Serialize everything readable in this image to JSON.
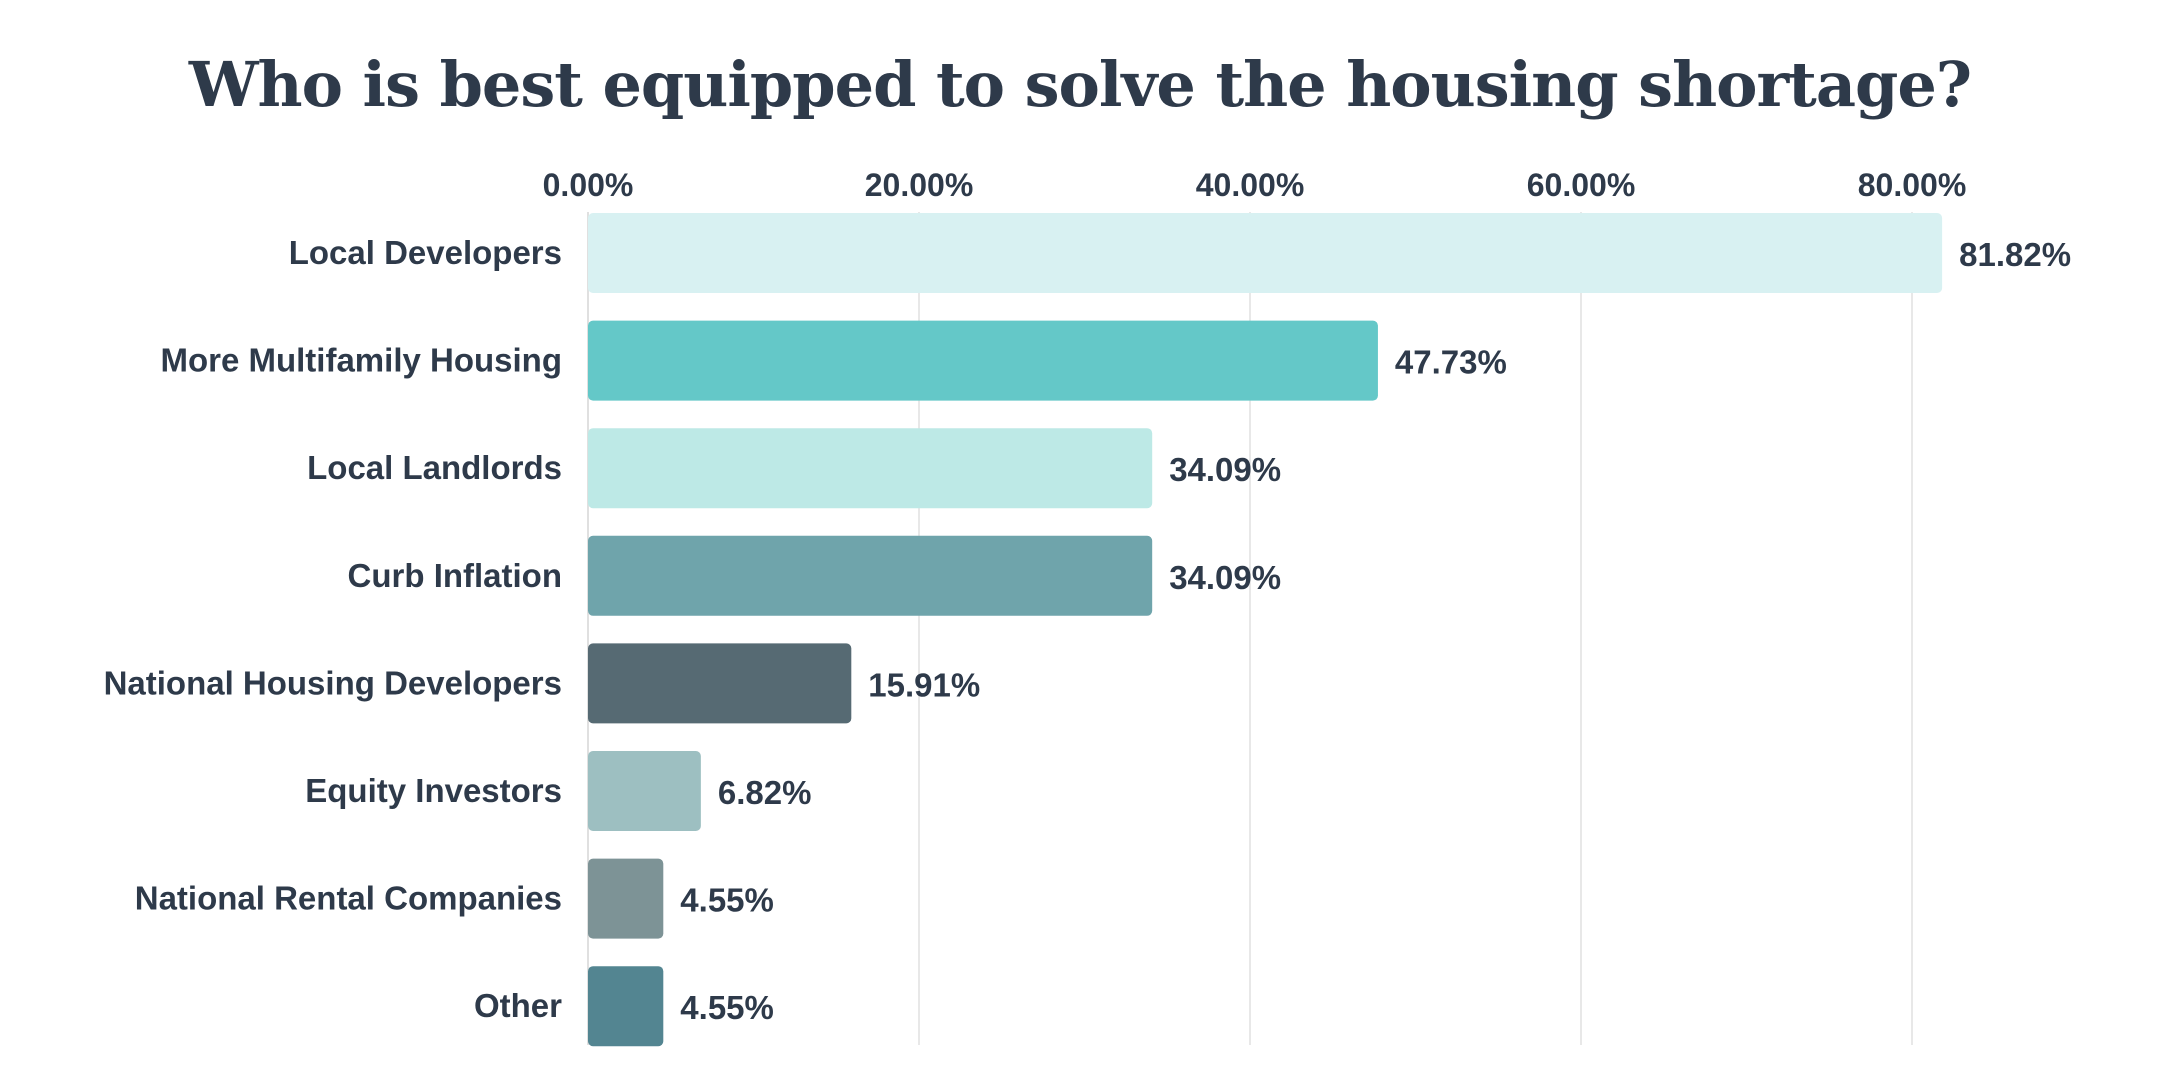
{
  "chart_data": {
    "type": "bar",
    "orientation": "horizontal",
    "title": "Who is best equipped to solve the housing shortage?",
    "xlabel": "",
    "ylabel": "",
    "xlim": [
      0,
      88
    ],
    "x_ticks": [
      0,
      20,
      40,
      60,
      80
    ],
    "x_tick_labels": [
      "0.00%",
      "20.00%",
      "40.00%",
      "60.00%",
      "80.00%"
    ],
    "x_axis_position": "top",
    "grid": true,
    "legend": "none",
    "categories": [
      "Local Developers",
      "More Multifamily Housing",
      "Local Landlords",
      "Curb Inflation",
      "National Housing Developers",
      "Equity Investors",
      "National Rental Companies",
      "Other"
    ],
    "values": [
      81.82,
      47.73,
      34.09,
      34.09,
      15.91,
      6.82,
      4.55,
      4.55
    ],
    "value_labels": [
      "81.82%",
      "47.73%",
      "34.09%",
      "34.09%",
      "15.91%",
      "6.82%",
      "4.55%",
      "4.55%"
    ],
    "colors": [
      "#d8f1f2",
      "#64c8c8",
      "#bde9e6",
      "#6fa4ab",
      "#566a73",
      "#9dbfc1",
      "#7d9396",
      "#538591"
    ]
  }
}
